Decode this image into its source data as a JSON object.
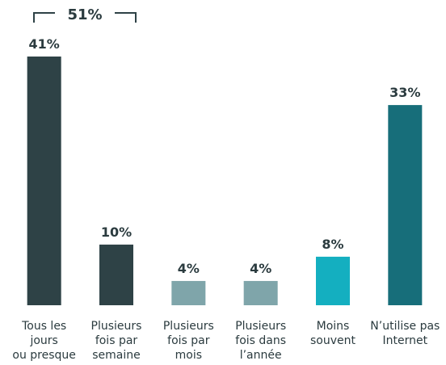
{
  "chart_data": {
    "type": "bar",
    "categories": [
      "Tous les\njours\nou presque",
      "Plusieurs\nfois par\nsemaine",
      "Plusieurs\nfois par\nmois",
      "Plusieurs\nfois dans\nl’année",
      "Moins\nsouvent",
      "N’utilise pas\nInternet"
    ],
    "values": [
      41,
      10,
      4,
      4,
      8,
      33
    ],
    "value_labels": [
      "41%",
      "10%",
      "4%",
      "4%",
      "8%",
      "33%"
    ],
    "colors": [
      "#2e4246",
      "#2e4246",
      "#7fa5aa",
      "#7fa5aa",
      "#14afc0",
      "#176e7a"
    ],
    "annotation": "51%",
    "ylim": [
      0,
      41
    ]
  }
}
